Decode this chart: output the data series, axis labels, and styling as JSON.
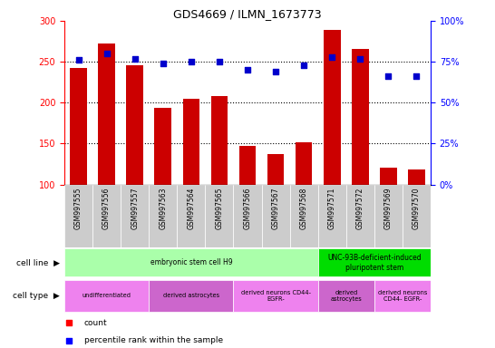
{
  "title": "GDS4669 / ILMN_1673773",
  "samples": [
    "GSM997555",
    "GSM997556",
    "GSM997557",
    "GSM997563",
    "GSM997564",
    "GSM997565",
    "GSM997566",
    "GSM997567",
    "GSM997568",
    "GSM997571",
    "GSM997572",
    "GSM997569",
    "GSM997570"
  ],
  "counts": [
    242,
    272,
    246,
    194,
    205,
    208,
    147,
    137,
    152,
    289,
    266,
    120,
    118
  ],
  "percentiles": [
    76,
    80,
    77,
    74,
    75,
    75,
    70,
    69,
    73,
    78,
    77,
    66,
    66
  ],
  "ylim_left": [
    100,
    300
  ],
  "ylim_right": [
    0,
    100
  ],
  "bar_color": "#cc0000",
  "dot_color": "#0000cc",
  "xtick_bg": "#cccccc",
  "cell_line_groups": [
    {
      "text": "embryonic stem cell H9",
      "start": 0,
      "end": 9,
      "color": "#aaffaa"
    },
    {
      "text": "UNC-93B-deficient-induced\npluripotent stem",
      "start": 9,
      "end": 13,
      "color": "#00dd00"
    }
  ],
  "cell_type_groups": [
    {
      "text": "undifferentiated",
      "start": 0,
      "end": 3,
      "color": "#ee82ee"
    },
    {
      "text": "derived astrocytes",
      "start": 3,
      "end": 6,
      "color": "#cc66cc"
    },
    {
      "text": "derived neurons CD44-\nEGFR-",
      "start": 6,
      "end": 9,
      "color": "#ee82ee"
    },
    {
      "text": "derived\nastrocytes",
      "start": 9,
      "end": 11,
      "color": "#cc66cc"
    },
    {
      "text": "derived neurons\nCD44- EGFR-",
      "start": 11,
      "end": 13,
      "color": "#ee82ee"
    }
  ],
  "legend_items": [
    {
      "color": "#cc0000",
      "label": "count"
    },
    {
      "color": "#0000cc",
      "label": "percentile rank within the sample"
    }
  ]
}
